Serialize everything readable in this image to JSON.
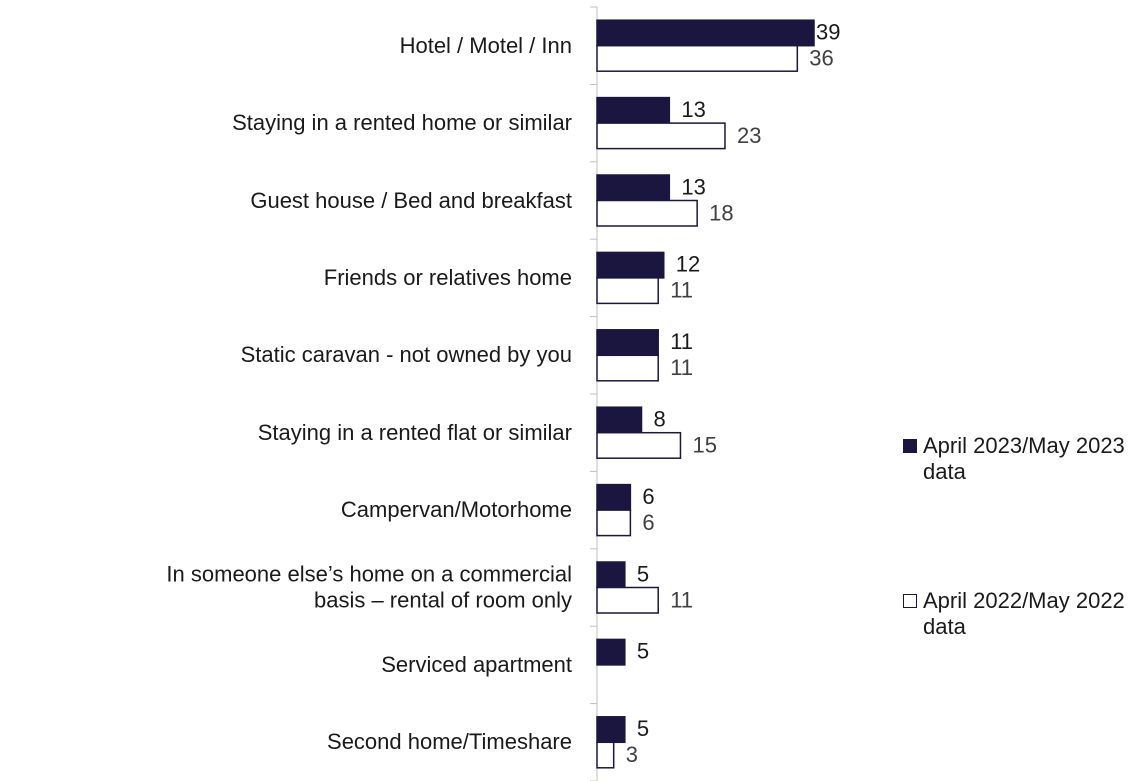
{
  "chart_data": {
    "type": "hbar",
    "categories": [
      "Hotel / Motel / Inn",
      "Staying in a rented home or similar",
      "Guest house / Bed and breakfast",
      "Friends or relatives home",
      "Static caravan - not owned by you",
      "Staying in a rented flat or similar",
      "Campervan/Motorhome",
      "In someone else’s home on a commercial\nbasis – rental of room only",
      "Serviced apartment",
      "Second home/Timeshare"
    ],
    "series": [
      {
        "name": "April 2023/May 2023 data",
        "color": "#1b1640",
        "values": [
          39,
          13,
          13,
          12,
          11,
          8,
          6,
          5,
          5,
          5
        ]
      },
      {
        "name": "April 2022/May 2022 data",
        "color": "#ffffff",
        "values": [
          36,
          23,
          18,
          11,
          11,
          15,
          6,
          11,
          null,
          3
        ]
      }
    ],
    "legend": "right"
  }
}
